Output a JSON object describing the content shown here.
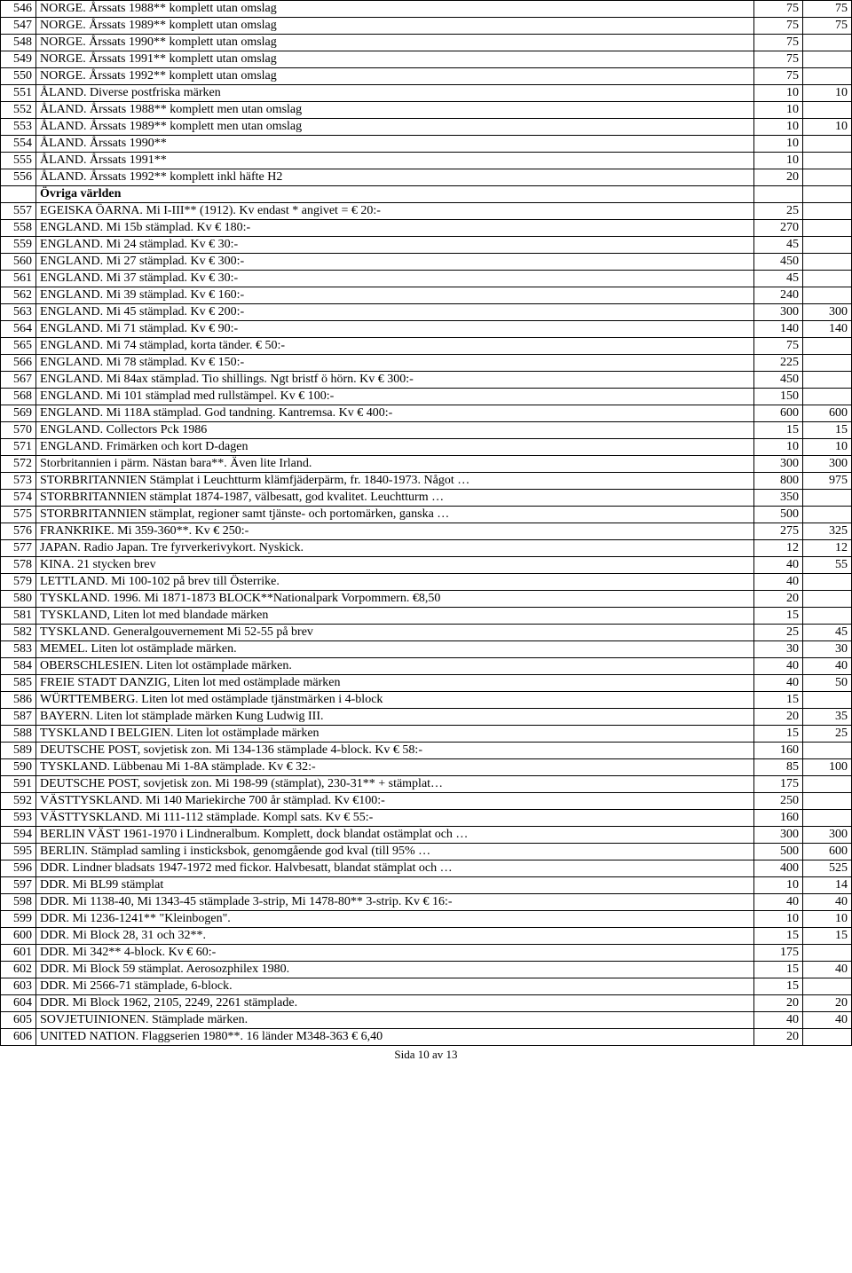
{
  "footer": "Sida 10 av 13",
  "section_header": "Övriga världen",
  "rows": [
    {
      "id": "546",
      "desc": "NORGE. Årssats 1988** komplett utan omslag",
      "v1": "75",
      "v2": "75"
    },
    {
      "id": "547",
      "desc": "NORGE. Årssats 1989** komplett utan omslag",
      "v1": "75",
      "v2": "75"
    },
    {
      "id": "548",
      "desc": "NORGE. Årssats 1990** komplett utan omslag",
      "v1": "75",
      "v2": ""
    },
    {
      "id": "549",
      "desc": "NORGE. Årssats 1991** komplett utan omslag",
      "v1": "75",
      "v2": ""
    },
    {
      "id": "550",
      "desc": "NORGE. Årssats 1992** komplett utan omslag",
      "v1": "75",
      "v2": ""
    },
    {
      "id": "551",
      "desc": "ÅLAND. Diverse postfriska märken",
      "v1": "10",
      "v2": "10"
    },
    {
      "id": "552",
      "desc": "ÅLAND. Årssats 1988** komplett men utan omslag",
      "v1": "10",
      "v2": ""
    },
    {
      "id": "553",
      "desc": "ÅLAND. Årssats 1989** komplett men utan omslag",
      "v1": "10",
      "v2": "10"
    },
    {
      "id": "554",
      "desc": "ÅLAND. Årssats 1990**",
      "v1": "10",
      "v2": ""
    },
    {
      "id": "555",
      "desc": "ÅLAND. Årssats 1991**",
      "v1": "10",
      "v2": ""
    },
    {
      "id": "556",
      "desc": "ÅLAND. Årssats 1992** komplett inkl häfte H2",
      "v1": "20",
      "v2": ""
    },
    {
      "header": true
    },
    {
      "id": "557",
      "desc": "EGEISKA ÖARNA. Mi I-III** (1912). Kv endast * angivet = € 20:-",
      "v1": "25",
      "v2": ""
    },
    {
      "id": "558",
      "desc": "ENGLAND. Mi 15b stämplad. Kv € 180:-",
      "v1": "270",
      "v2": ""
    },
    {
      "id": "559",
      "desc": "ENGLAND. Mi 24 stämplad. Kv € 30:-",
      "v1": "45",
      "v2": ""
    },
    {
      "id": "560",
      "desc": "ENGLAND. Mi 27 stämplad. Kv € 300:-",
      "v1": "450",
      "v2": ""
    },
    {
      "id": "561",
      "desc": "ENGLAND. Mi 37 stämplad. Kv € 30:-",
      "v1": "45",
      "v2": ""
    },
    {
      "id": "562",
      "desc": "ENGLAND. Mi 39 stämplad. Kv € 160:-",
      "v1": "240",
      "v2": ""
    },
    {
      "id": "563",
      "desc": "ENGLAND. Mi 45 stämplad. Kv € 200:-",
      "v1": "300",
      "v2": "300"
    },
    {
      "id": "564",
      "desc": "ENGLAND. Mi 71 stämplad. Kv € 90:-",
      "v1": "140",
      "v2": "140"
    },
    {
      "id": "565",
      "desc": "ENGLAND. Mi 74 stämplad, korta tänder. € 50:-",
      "v1": "75",
      "v2": ""
    },
    {
      "id": "566",
      "desc": "ENGLAND. Mi 78 stämplad. Kv € 150:-",
      "v1": "225",
      "v2": ""
    },
    {
      "id": "567",
      "desc": "ENGLAND. Mi 84ax stämplad. Tio shillings. Ngt bristf ö hörn. Kv € 300:-",
      "v1": "450",
      "v2": ""
    },
    {
      "id": "568",
      "desc": "ENGLAND. Mi 101 stämplad med rullstämpel. Kv € 100:-",
      "v1": "150",
      "v2": ""
    },
    {
      "id": "569",
      "desc": "ENGLAND. Mi 118A stämplad. God tandning. Kantremsa. Kv € 400:-",
      "v1": "600",
      "v2": "600"
    },
    {
      "id": "570",
      "desc": "ENGLAND. Collectors Pck 1986",
      "v1": "15",
      "v2": "15"
    },
    {
      "id": "571",
      "desc": "ENGLAND. Frimärken och kort D-dagen",
      "v1": "10",
      "v2": "10"
    },
    {
      "id": "572",
      "desc": "Storbritannien i pärm. Nästan bara**. Även lite Irland.",
      "v1": "300",
      "v2": "300"
    },
    {
      "id": "573",
      "desc": "STORBRITANNIEN Stämplat i Leuchtturm klämfjäderpärm, fr. 1840-1973. Något …",
      "v1": "800",
      "v2": "975"
    },
    {
      "id": "574",
      "desc": "STORBRITANNIEN stämplat 1874-1987, välbesatt, god kvalitet. Leuchtturm …",
      "v1": "350",
      "v2": ""
    },
    {
      "id": "575",
      "desc": "STORBRITANNIEN stämplat, regioner samt tjänste- och portomärken, ganska …",
      "v1": "500",
      "v2": ""
    },
    {
      "id": "576",
      "desc": "FRANKRIKE. Mi 359-360**. Kv € 250:-",
      "v1": "275",
      "v2": "325"
    },
    {
      "id": "577",
      "desc": "JAPAN. Radio Japan. Tre fyrverkerivykort. Nyskick.",
      "v1": "12",
      "v2": "12"
    },
    {
      "id": "578",
      "desc": "KINA. 21 stycken brev",
      "v1": "40",
      "v2": "55"
    },
    {
      "id": "579",
      "desc": "LETTLAND. Mi 100-102 på brev till Österrike.",
      "v1": "40",
      "v2": ""
    },
    {
      "id": "580",
      "desc": "TYSKLAND.  1996.  Mi 1871-1873 BLOCK**Nationalpark Vorpommern. €8,50",
      "v1": "20",
      "v2": ""
    },
    {
      "id": "581",
      "desc": "TYSKLAND, Liten lot med blandade märken",
      "v1": "15",
      "v2": ""
    },
    {
      "id": "582",
      "desc": "TYSKLAND. Generalgouvernement Mi 52-55 på brev",
      "v1": "25",
      "v2": "45"
    },
    {
      "id": "583",
      "desc": "MEMEL. Liten lot ostämplade märken.",
      "v1": "30",
      "v2": "30"
    },
    {
      "id": "584",
      "desc": "OBERSCHLESIEN. Liten lot ostämplade märken.",
      "v1": "40",
      "v2": "40"
    },
    {
      "id": "585",
      "desc": "FREIE STADT DANZIG, Liten lot med ostämplade märken",
      "v1": "40",
      "v2": "50"
    },
    {
      "id": "586",
      "desc": "WÜRTTEMBERG. Liten lot med ostämplade tjänstmärken i 4-block",
      "v1": "15",
      "v2": ""
    },
    {
      "id": "587",
      "desc": "BAYERN. Liten lot stämplade märken Kung Ludwig III.",
      "v1": "20",
      "v2": "35"
    },
    {
      "id": "588",
      "desc": "TYSKLAND I BELGIEN. Liten lot ostämplade märken",
      "v1": "15",
      "v2": "25"
    },
    {
      "id": "589",
      "desc": "DEUTSCHE POST, sovjetisk zon. Mi 134-136 stämplade 4-block. Kv € 58:-",
      "v1": "160",
      "v2": ""
    },
    {
      "id": "590",
      "desc": "TYSKLAND. Lübbenau Mi 1-8A stämplade. Kv € 32:-",
      "v1": "85",
      "v2": "100"
    },
    {
      "id": "591",
      "desc": "DEUTSCHE POST, sovjetisk zon. Mi 198-99 (stämplat), 230-31** + stämplat…",
      "v1": "175",
      "v2": ""
    },
    {
      "id": "592",
      "desc": "VÄSTTYSKLAND. Mi 140 Mariekirche 700 år stämplad. Kv €100:-",
      "v1": "250",
      "v2": ""
    },
    {
      "id": "593",
      "desc": "VÄSTTYSKLAND. Mi 111-112 stämplade. Kompl sats. Kv € 55:-",
      "v1": "160",
      "v2": ""
    },
    {
      "id": "594",
      "desc": "BERLIN VÄST 1961-1970 i Lindneralbum. Komplett, dock blandat ostämplat och …",
      "v1": "300",
      "v2": "300"
    },
    {
      "id": "595",
      "desc": "BERLIN. Stämplad samling i insticksbok, genomgående god kval (till 95% …",
      "v1": "500",
      "v2": "600"
    },
    {
      "id": "596",
      "desc": "DDR. Lindner bladsats 1947-1972 med fickor. Halvbesatt, blandat stämplat och …",
      "v1": "400",
      "v2": "525"
    },
    {
      "id": "597",
      "desc": "DDR. Mi BL99 stämplat",
      "v1": "10",
      "v2": "14"
    },
    {
      "id": "598",
      "desc": "DDR. Mi 1138-40, Mi 1343-45 stämplade 3-strip, Mi 1478-80** 3-strip. Kv € 16:-",
      "v1": "40",
      "v2": "40"
    },
    {
      "id": "599",
      "desc": "DDR. Mi 1236-1241** \"Kleinbogen\".",
      "v1": "10",
      "v2": "10"
    },
    {
      "id": "600",
      "desc": "DDR. Mi Block 28, 31 och 32**.",
      "v1": "15",
      "v2": "15"
    },
    {
      "id": "601",
      "desc": "DDR. Mi 342** 4-block. Kv € 60:-",
      "v1": "175",
      "v2": ""
    },
    {
      "id": "602",
      "desc": "DDR. Mi Block 59 stämplat. Aerosozphilex 1980.",
      "v1": "15",
      "v2": "40"
    },
    {
      "id": "603",
      "desc": "DDR. Mi 2566-71 stämplade, 6-block.",
      "v1": "15",
      "v2": ""
    },
    {
      "id": "604",
      "desc": "DDR. Mi Block 1962, 2105, 2249, 2261 stämplade.",
      "v1": "20",
      "v2": "20"
    },
    {
      "id": "605",
      "desc": "SOVJETUINIONEN. Stämplade märken.",
      "v1": "40",
      "v2": "40"
    },
    {
      "id": "606",
      "desc": "UNITED NATION. Flaggserien 1980**. 16 länder M348-363 € 6,40",
      "v1": "20",
      "v2": ""
    }
  ]
}
